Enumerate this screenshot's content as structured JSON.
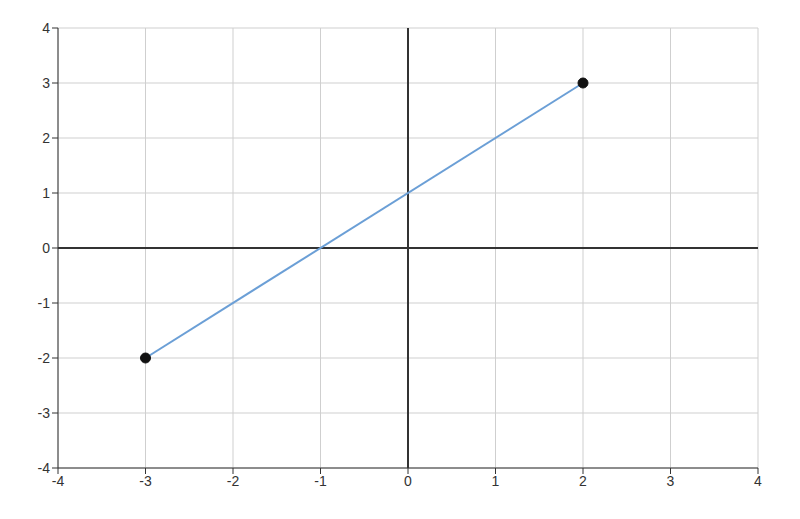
{
  "chart_data": {
    "type": "line",
    "x": [
      -3,
      2
    ],
    "values": [
      -2,
      3
    ],
    "color": "#6b9fd6",
    "marker": "circle",
    "xlim": [
      -4,
      4
    ],
    "xticks": [
      -4,
      -3,
      -2,
      -1,
      0,
      1,
      2,
      3,
      4
    ],
    "ylim": [
      -4,
      4
    ],
    "yticks": [
      -4,
      -3,
      -2,
      -1,
      0,
      1,
      2,
      3,
      4
    ],
    "grid": true
  }
}
